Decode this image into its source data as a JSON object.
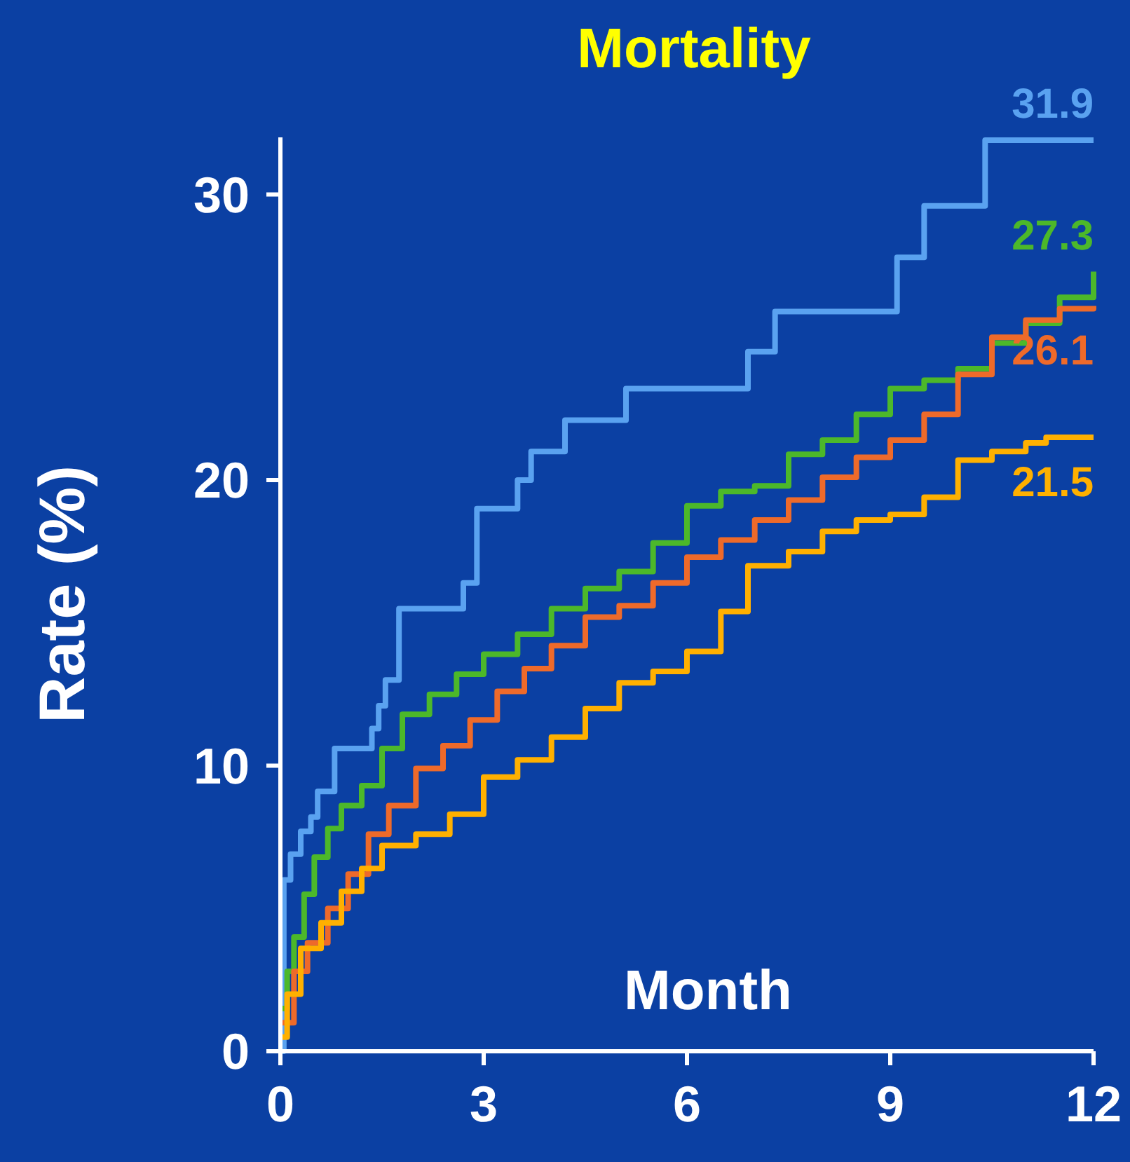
{
  "chart_data": {
    "type": "step",
    "title": "Mortality",
    "xlabel": "Month",
    "ylabel": "Rate (%)",
    "xlim": [
      0,
      12
    ],
    "xticks": [
      0,
      3,
      6,
      9,
      12
    ],
    "ylim": [
      0,
      32
    ],
    "yticks": [
      0,
      10,
      20,
      30
    ],
    "grid": false,
    "marker": "none",
    "line_style": "solid",
    "series": [
      {
        "color": "#5aa2f0",
        "x": [
          0,
          0.05,
          0.15,
          0.3,
          0.45,
          0.55,
          0.8,
          1.35,
          1.45,
          1.55,
          1.75,
          2.7,
          2.9,
          3.5,
          3.7,
          4.2,
          5.1,
          6.9,
          7.3,
          9.1,
          9.5,
          10.4,
          12
        ],
        "values": [
          0,
          6,
          6.9,
          7.7,
          8.2,
          9.1,
          10.6,
          11.3,
          12.1,
          13,
          15.5,
          16.4,
          19,
          20,
          21,
          22.1,
          23.2,
          24.5,
          25.9,
          27.8,
          29.6,
          31.9,
          31.9
        ],
        "value_labels": [
          null,
          null,
          null,
          null,
          null,
          null,
          null,
          null,
          null,
          null,
          null,
          null,
          null,
          null,
          null,
          null,
          null,
          null,
          null,
          null,
          null,
          null,
          "31.9"
        ]
      },
      {
        "color": "#4cb82a",
        "x": [
          0,
          0.1,
          0.2,
          0.35,
          0.5,
          0.7,
          0.9,
          1.2,
          1.5,
          1.8,
          2.2,
          2.6,
          3,
          3.5,
          4,
          4.5,
          5,
          5.5,
          6,
          6.5,
          7,
          7.5,
          8,
          8.5,
          9,
          9.5,
          10,
          10.5,
          11,
          11.5,
          12
        ],
        "values": [
          1.5,
          2.8,
          4,
          5.5,
          6.8,
          7.8,
          8.6,
          9.3,
          10.6,
          11.8,
          12.5,
          13.2,
          13.9,
          14.6,
          15.5,
          16.2,
          16.8,
          17.8,
          19.1,
          19.6,
          19.8,
          20.9,
          21.4,
          22.3,
          23.2,
          23.5,
          23.9,
          24.8,
          25.5,
          26.4,
          27.3
        ],
        "value_labels": [
          null,
          null,
          null,
          null,
          null,
          null,
          null,
          null,
          null,
          null,
          null,
          null,
          null,
          null,
          null,
          null,
          null,
          null,
          null,
          null,
          null,
          null,
          null,
          null,
          null,
          null,
          null,
          null,
          null,
          null,
          "27.3"
        ]
      },
      {
        "color": "#ee6a2a",
        "x": [
          0,
          0.2,
          0.4,
          0.7,
          1,
          1.3,
          1.6,
          2,
          2.4,
          2.8,
          3.2,
          3.6,
          4,
          4.5,
          5,
          5.5,
          6,
          6.5,
          7,
          7.5,
          8,
          8.5,
          9,
          9.5,
          10,
          10.5,
          11,
          11.5,
          12
        ],
        "values": [
          1,
          2.8,
          3.8,
          5,
          6.2,
          7.6,
          8.6,
          9.9,
          10.7,
          11.6,
          12.6,
          13.4,
          14.2,
          15.2,
          15.6,
          16.4,
          17.3,
          17.9,
          18.6,
          19.3,
          20.1,
          20.8,
          21.4,
          22.3,
          23.7,
          25,
          25.6,
          26,
          26.1
        ],
        "value_labels": [
          null,
          null,
          null,
          null,
          null,
          null,
          null,
          null,
          null,
          null,
          null,
          null,
          null,
          null,
          null,
          null,
          null,
          null,
          null,
          null,
          null,
          null,
          null,
          null,
          null,
          null,
          null,
          null,
          "26.1"
        ]
      },
      {
        "color": "#ffb000",
        "x": [
          0,
          0.1,
          0.3,
          0.6,
          0.9,
          1.2,
          1.5,
          2,
          2.5,
          3,
          3.5,
          4,
          4.5,
          5,
          5.5,
          6,
          6.5,
          6.9,
          7.5,
          8,
          8.5,
          9,
          9.5,
          10,
          10.5,
          11,
          11.3,
          12
        ],
        "values": [
          0.5,
          2,
          3.6,
          4.5,
          5.6,
          6.4,
          7.2,
          7.6,
          8.3,
          9.6,
          10.2,
          11,
          12,
          12.9,
          13.3,
          14,
          15.4,
          17,
          17.5,
          18.2,
          18.6,
          18.8,
          19.4,
          20.7,
          21,
          21.3,
          21.5,
          21.5
        ],
        "value_labels": [
          null,
          null,
          null,
          null,
          null,
          null,
          null,
          null,
          null,
          null,
          null,
          null,
          null,
          null,
          null,
          null,
          null,
          null,
          null,
          null,
          null,
          null,
          null,
          null,
          null,
          null,
          null,
          "21.5"
        ]
      }
    ]
  }
}
